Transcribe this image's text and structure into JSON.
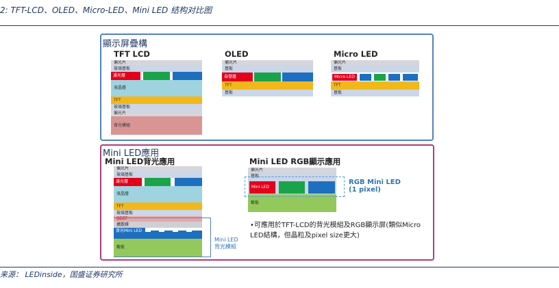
{
  "figure_title": "2:  TFT-LCD、OLED、Micro-LED、Mini LED 结构对比图",
  "source": "来源：  LEDinside，国盛证券研究所",
  "top_panel": {
    "title": "顯示屏疊構",
    "tft_lcd": {
      "title": "TFT LCD",
      "layers": [
        "偏光片",
        "玻璃基板",
        "濾光層",
        "液晶層",
        "TFT",
        "玻璃基板",
        "偏光片",
        "背光模組"
      ]
    },
    "oled": {
      "title": "OLED",
      "layers": [
        "偏光片",
        "基板",
        "自發層",
        "TFT",
        "基板"
      ]
    },
    "micro_led": {
      "title": "Micro LED",
      "layers": [
        "偏光片",
        "基板",
        "Micro LED",
        "TFT",
        "基板"
      ]
    }
  },
  "bottom_panel": {
    "title": "Mini LED應用",
    "backlight": {
      "title": "Mini LED背光應用",
      "layers": [
        "偏光片",
        "玻璃基板",
        "濾光層",
        "液晶層",
        "TFT",
        "玻璃基板",
        "QDEF",
        "擴散膜",
        "背光Mini LED",
        "載板"
      ],
      "bracket_label": [
        "Mini LED",
        "背光模組"
      ]
    },
    "rgb": {
      "title": "Mini LED RGB顯示應用",
      "layers": [
        "偏光片",
        "基板",
        "Mini LED",
        "載板"
      ],
      "label": [
        "RGB Mini LED",
        "(1 pixel)"
      ]
    },
    "note": "•可應用於TFT-LCD的背光模組及RGB顯示屏(類似Micro LED結構，但晶粒及pixel size更大)"
  },
  "colors": {
    "frame_blue": "#1f3864",
    "panel_blue": "#4f81bd",
    "panel_magenta": "#b03a7a",
    "red": "#e3001b",
    "green": "#1aa34a",
    "blue": "#1e6fbf",
    "tft_yellow": "#f2b81b",
    "liquid_crystal": "#9fd3df",
    "backlight": "#d99494",
    "substrate_green": "#93c95c"
  }
}
